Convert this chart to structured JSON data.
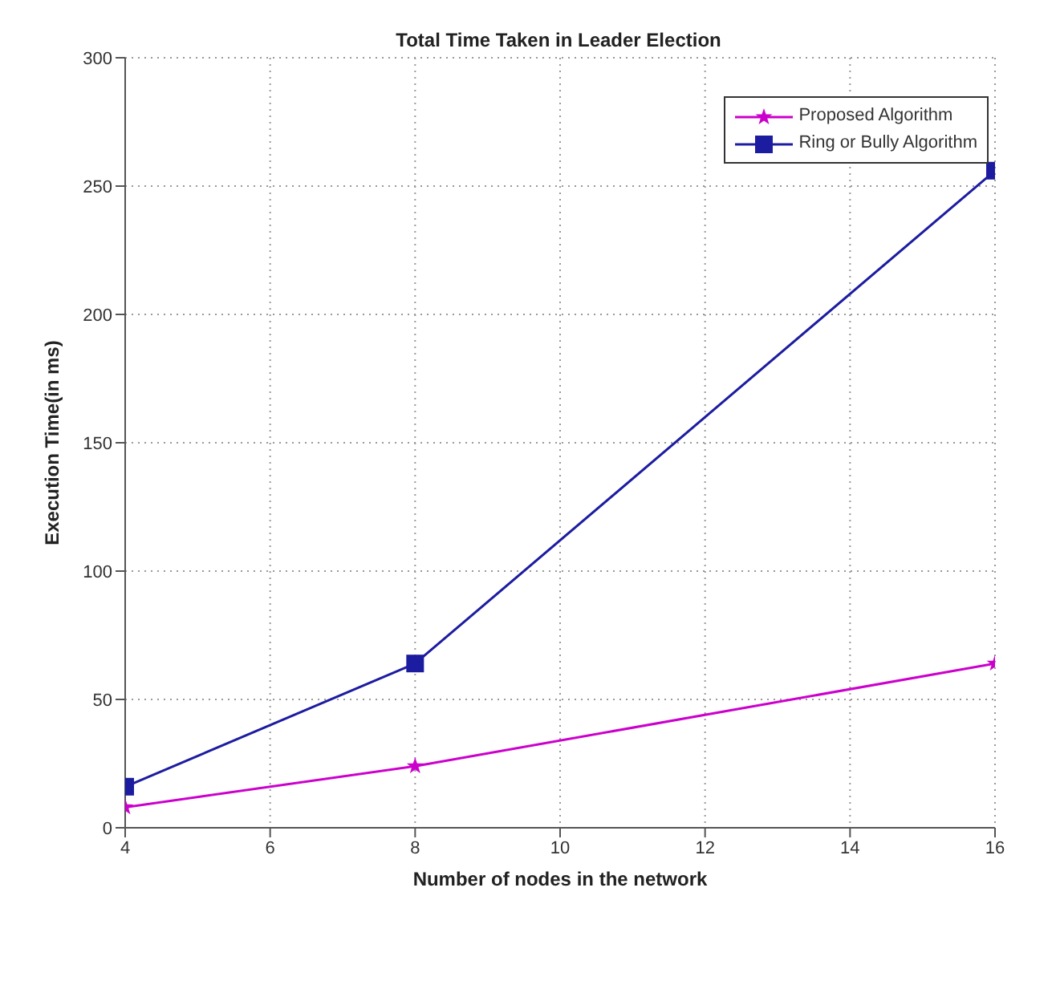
{
  "chart_data": {
    "type": "line",
    "title": "Total Time Taken in Leader Election",
    "xlabel": "Number of nodes in the network",
    "ylabel": "Execution Time(in ms)",
    "x": [
      4,
      8,
      16
    ],
    "series": [
      {
        "name": "Proposed Algorithm",
        "color": "#cc00cc",
        "values": [
          8,
          24,
          64
        ],
        "marker": "star"
      },
      {
        "name": "Ring or Bully Algorithm",
        "color": "#1c1ca0",
        "values": [
          16,
          64,
          256
        ],
        "marker": "square"
      }
    ],
    "xlim": [
      4,
      16
    ],
    "xticks": [
      4,
      6,
      8,
      10,
      12,
      14,
      16
    ],
    "ylim": [
      0,
      300
    ],
    "yticks": [
      0,
      50,
      100,
      150,
      200,
      250,
      300
    ],
    "grid": true,
    "legend": "top right",
    "line_style": "solid"
  }
}
